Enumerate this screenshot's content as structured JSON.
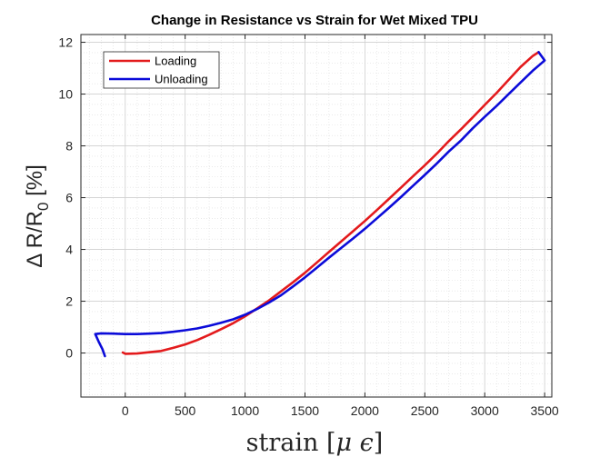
{
  "chart_data": {
    "type": "line",
    "title": "Change in Resistance vs Strain for Wet Mixed TPU",
    "xlabel": {
      "main": "strain [",
      "symbol_mu": "μ",
      "symbol_eps": "ϵ",
      "close": "]"
    },
    "ylabel": {
      "prefix": "Δ R/R",
      "subscript": "0",
      "suffix": " [%]"
    },
    "xlim": [
      -370,
      3560
    ],
    "ylim": [
      -1.7,
      12.3
    ],
    "x_ticks": [
      0,
      500,
      1000,
      1500,
      2000,
      2500,
      3000,
      3500
    ],
    "y_ticks": [
      0,
      2,
      4,
      6,
      8,
      10,
      12
    ],
    "x_tick_labels": [
      "0",
      "500",
      "1000",
      "1500",
      "2000",
      "2500",
      "3000",
      "3500"
    ],
    "y_tick_labels": [
      "0",
      "2",
      "4",
      "6",
      "8",
      "10",
      "12"
    ],
    "grid": true,
    "minor_grid": true,
    "legend_position": "top-left",
    "series": [
      {
        "name": "Loading",
        "color": "#e31a1c",
        "points": [
          [
            -20,
            0.02
          ],
          [
            0,
            -0.03
          ],
          [
            100,
            -0.02
          ],
          [
            200,
            0.03
          ],
          [
            300,
            0.08
          ],
          [
            400,
            0.2
          ],
          [
            500,
            0.33
          ],
          [
            600,
            0.5
          ],
          [
            700,
            0.7
          ],
          [
            800,
            0.92
          ],
          [
            900,
            1.15
          ],
          [
            1000,
            1.42
          ],
          [
            1100,
            1.72
          ],
          [
            1200,
            2.03
          ],
          [
            1300,
            2.38
          ],
          [
            1400,
            2.73
          ],
          [
            1500,
            3.1
          ],
          [
            1600,
            3.5
          ],
          [
            1700,
            3.9
          ],
          [
            1800,
            4.3
          ],
          [
            1900,
            4.7
          ],
          [
            2000,
            5.1
          ],
          [
            2100,
            5.52
          ],
          [
            2200,
            5.95
          ],
          [
            2300,
            6.38
          ],
          [
            2400,
            6.82
          ],
          [
            2500,
            7.25
          ],
          [
            2600,
            7.7
          ],
          [
            2700,
            8.18
          ],
          [
            2800,
            8.63
          ],
          [
            2900,
            9.1
          ],
          [
            3000,
            9.58
          ],
          [
            3100,
            10.05
          ],
          [
            3200,
            10.55
          ],
          [
            3300,
            11.05
          ],
          [
            3400,
            11.47
          ],
          [
            3450,
            11.62
          ]
        ]
      },
      {
        "name": "Unloading",
        "color": "#0b0bd9",
        "points": [
          [
            3450,
            11.62
          ],
          [
            3500,
            11.3
          ],
          [
            3480,
            11.22
          ],
          [
            3400,
            10.9
          ],
          [
            3300,
            10.45
          ],
          [
            3200,
            10.0
          ],
          [
            3100,
            9.55
          ],
          [
            3000,
            9.12
          ],
          [
            2900,
            8.68
          ],
          [
            2800,
            8.2
          ],
          [
            2700,
            7.78
          ],
          [
            2600,
            7.32
          ],
          [
            2500,
            6.88
          ],
          [
            2400,
            6.45
          ],
          [
            2300,
            6.02
          ],
          [
            2200,
            5.6
          ],
          [
            2100,
            5.2
          ],
          [
            2000,
            4.8
          ],
          [
            1900,
            4.42
          ],
          [
            1800,
            4.05
          ],
          [
            1700,
            3.68
          ],
          [
            1600,
            3.3
          ],
          [
            1500,
            2.92
          ],
          [
            1400,
            2.57
          ],
          [
            1300,
            2.23
          ],
          [
            1200,
            1.95
          ],
          [
            1100,
            1.7
          ],
          [
            1000,
            1.48
          ],
          [
            900,
            1.3
          ],
          [
            800,
            1.17
          ],
          [
            700,
            1.05
          ],
          [
            600,
            0.95
          ],
          [
            500,
            0.88
          ],
          [
            400,
            0.82
          ],
          [
            300,
            0.77
          ],
          [
            200,
            0.75
          ],
          [
            100,
            0.73
          ],
          [
            0,
            0.73
          ],
          [
            -100,
            0.75
          ],
          [
            -200,
            0.76
          ],
          [
            -250,
            0.73
          ],
          [
            -220,
            0.42
          ],
          [
            -190,
            0.15
          ],
          [
            -170,
            -0.12
          ]
        ]
      }
    ]
  }
}
